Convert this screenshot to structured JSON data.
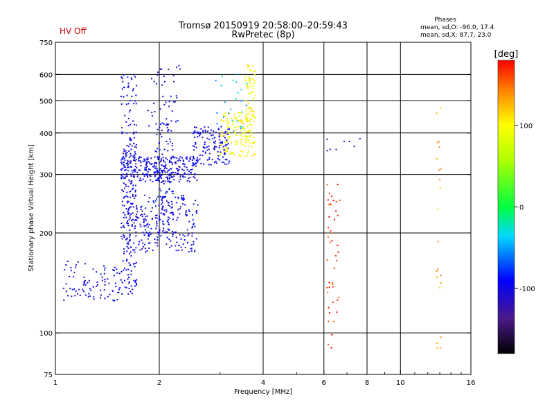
{
  "chart_data": {
    "type": "scatter",
    "title": "Tromsø 20150919 20:58:00–20:59:43",
    "subtitle": "RwPretec (8p)",
    "status": "HV Off",
    "xlabel": "Frequency [MHz]",
    "ylabel": "Stationary phase Virtual Height [km]",
    "x_scale": "log",
    "y_scale": "log",
    "xlim": [
      1,
      16
    ],
    "ylim": [
      75,
      750
    ],
    "x_ticks": [
      1,
      2,
      4,
      6,
      8,
      10,
      16
    ],
    "x_tick_labels": [
      "1",
      "2",
      "4",
      "6",
      "8",
      "10",
      "16"
    ],
    "y_ticks": [
      75,
      100,
      200,
      300,
      400,
      500,
      600,
      750
    ],
    "y_tick_labels": [
      "75",
      "100",
      "200",
      "300",
      "400",
      "500",
      "600",
      "750"
    ],
    "grid_x": [
      2,
      4,
      6,
      8,
      10
    ],
    "grid_y": [
      100,
      200,
      300,
      400,
      500,
      600
    ],
    "info": {
      "title": "Phases",
      "line1": "mean, sd,O: -96.0, 17.4",
      "line2": "mean, sd,X:  87.7, 23.0"
    },
    "colorbar": {
      "label": "[deg]",
      "range": [
        -180,
        180
      ],
      "ticks": [
        100,
        0,
        -100
      ],
      "tick_labels": [
        "100",
        "0",
        "-100"
      ]
    },
    "clusters": [
      {
        "name": "O-low-trace",
        "phase": -100,
        "x": [
          1.05,
          1.55
        ],
        "y": [
          125,
          165
        ],
        "n": 90
      },
      {
        "name": "O-column-1.6",
        "phase": -100,
        "x": [
          1.55,
          1.72
        ],
        "y": [
          130,
          600
        ],
        "n": 230
      },
      {
        "name": "O-band-300",
        "phase": -100,
        "x": [
          1.55,
          2.6
        ],
        "y": [
          285,
          340
        ],
        "n": 260
      },
      {
        "name": "O-lower-cloud",
        "phase": -100,
        "x": [
          1.6,
          2.6
        ],
        "y": [
          175,
          260
        ],
        "n": 230
      },
      {
        "name": "O-column-2.0",
        "phase": -100,
        "x": [
          1.95,
          2.2
        ],
        "y": [
          200,
          430
        ],
        "n": 130
      },
      {
        "name": "O-rising-trace",
        "phase": -100,
        "x": [
          2.5,
          3.2
        ],
        "y": [
          320,
          420
        ],
        "n": 140
      },
      {
        "name": "O-upper-2.0",
        "phase": -100,
        "x": [
          1.85,
          2.3
        ],
        "y": [
          420,
          640
        ],
        "n": 40
      },
      {
        "name": "cyan-upper",
        "phase": -40,
        "x": [
          2.9,
          3.6
        ],
        "y": [
          400,
          600
        ],
        "n": 25
      },
      {
        "name": "X-trace-3.5",
        "phase": 100,
        "x": [
          3.0,
          3.8
        ],
        "y": [
          340,
          460
        ],
        "n": 150
      },
      {
        "name": "X-column-3.7",
        "phase": 100,
        "x": [
          3.55,
          3.8
        ],
        "y": [
          430,
          640
        ],
        "n": 60
      },
      {
        "name": "O-scatter-6",
        "phase": -100,
        "x": [
          6.0,
          8.0
        ],
        "y": [
          340,
          420
        ],
        "n": 8
      },
      {
        "name": "X-column-6.3",
        "phase": 170,
        "x": [
          6.1,
          6.7
        ],
        "y": [
          90,
          280
        ],
        "n": 45
      },
      {
        "name": "X-column-13",
        "phase": 130,
        "x": [
          12.7,
          13.1
        ],
        "y": [
          85,
          480
        ],
        "n": 22
      }
    ]
  }
}
